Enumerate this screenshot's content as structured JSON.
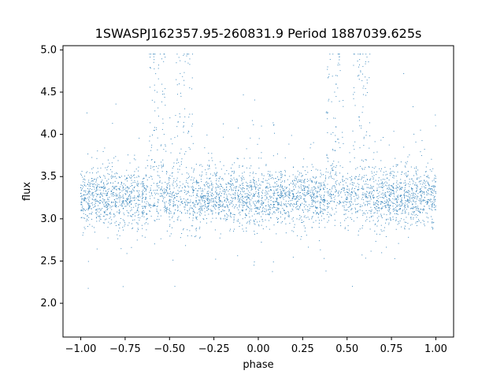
{
  "chart_data": {
    "type": "scatter",
    "title": "1SWASPJ162357.95-260831.9 Period 1887039.625s",
    "xlabel": "phase",
    "ylabel": "flux",
    "xlim": [
      -1.1,
      1.1
    ],
    "ylim": [
      1.6,
      5.05
    ],
    "x_ticks": [
      -1.0,
      -0.75,
      -0.5,
      -0.25,
      0.0,
      0.25,
      0.5,
      0.75,
      1.0
    ],
    "x_tick_labels": [
      "−1.00",
      "−0.75",
      "−0.50",
      "−0.25",
      "0.00",
      "0.25",
      "0.50",
      "0.75",
      "1.00"
    ],
    "y_ticks": [
      2.0,
      2.5,
      3.0,
      3.5,
      4.0,
      4.5,
      5.0
    ],
    "y_tick_labels": [
      "2.0",
      "2.5",
      "3.0",
      "3.5",
      "4.0",
      "4.5",
      "5.0"
    ],
    "marker_color": "#1f77b4",
    "grid": false,
    "series": [
      {
        "description": "phase-folded light curve, repeated over two cycles",
        "baseline_flux": 3.25,
        "typical_spread": [
          2.7,
          3.8
        ],
        "bright_outliers_near_phase": [
          -0.57,
          -0.42,
          0.43,
          0.58
        ],
        "x_range": [
          -1.0,
          1.0
        ],
        "y_range": [
          1.8,
          4.95
        ],
        "points": [
          [
            -1.0,
            3.3
          ],
          [
            -0.95,
            3.25
          ],
          [
            -0.9,
            3.2
          ],
          [
            -0.85,
            3.3
          ],
          [
            -0.8,
            3.35
          ],
          [
            -0.78,
            2.8
          ],
          [
            -0.75,
            3.3
          ],
          [
            -0.7,
            3.25
          ],
          [
            -0.65,
            3.4
          ],
          [
            -0.6,
            3.5
          ],
          [
            -0.57,
            4.5
          ],
          [
            -0.55,
            3.3
          ],
          [
            -0.5,
            3.35
          ],
          [
            -0.47,
            2.2
          ],
          [
            -0.45,
            3.3
          ],
          [
            -0.42,
            4.1
          ],
          [
            -0.4,
            3.3
          ],
          [
            -0.35,
            3.25
          ],
          [
            -0.3,
            3.2
          ],
          [
            -0.25,
            3.2
          ],
          [
            -0.2,
            3.15
          ],
          [
            -0.15,
            3.25
          ],
          [
            -0.1,
            3.3
          ],
          [
            -0.05,
            3.2
          ],
          [
            0.0,
            3.3
          ],
          [
            0.05,
            3.25
          ],
          [
            0.1,
            3.2
          ],
          [
            0.15,
            3.3
          ],
          [
            0.2,
            3.35
          ],
          [
            0.22,
            2.8
          ],
          [
            0.25,
            3.3
          ],
          [
            0.3,
            3.25
          ],
          [
            0.35,
            3.4
          ],
          [
            0.4,
            3.5
          ],
          [
            0.43,
            4.5
          ],
          [
            0.45,
            3.3
          ],
          [
            0.5,
            3.35
          ],
          [
            0.53,
            2.2
          ],
          [
            0.55,
            3.3
          ],
          [
            0.58,
            4.1
          ],
          [
            0.6,
            3.3
          ],
          [
            0.65,
            3.25
          ],
          [
            0.7,
            3.2
          ],
          [
            0.75,
            3.2
          ],
          [
            0.8,
            3.15
          ],
          [
            0.85,
            3.25
          ],
          [
            0.9,
            3.3
          ],
          [
            0.95,
            3.2
          ],
          [
            1.0,
            3.3
          ]
        ]
      }
    ]
  }
}
